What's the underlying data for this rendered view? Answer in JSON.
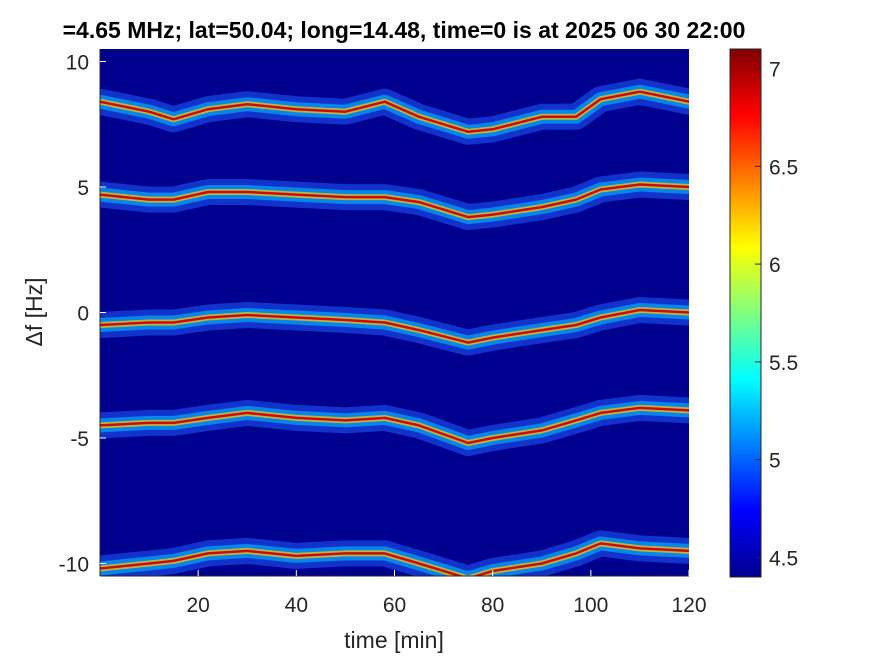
{
  "chart_data": {
    "type": "heatmap",
    "title": "=4.65 MHz;  lat=50.04; long=14.48, time=0 is at 2025 06 30 22:00",
    "xlabel": "time [min]",
    "ylabel": "Δf [Hz]",
    "xlim": [
      0,
      120
    ],
    "ylim": [
      -10.5,
      10.5
    ],
    "x_ticks": [
      "20",
      "40",
      "60",
      "80",
      "100",
      "120"
    ],
    "x_tick_values": [
      20,
      40,
      60,
      80,
      100,
      120
    ],
    "y_ticks": [
      "10",
      "5",
      "0",
      "-5",
      "-10"
    ],
    "y_tick_values": [
      10,
      5,
      0,
      -5,
      -10
    ],
    "colorbar": {
      "colormap": "jet",
      "range": [
        4.4,
        7.1
      ],
      "ticks": [
        "7",
        "6.5",
        "6",
        "5.5",
        "5",
        "4.5"
      ],
      "tick_values": [
        7,
        6.5,
        6,
        5.5,
        5,
        4.5
      ]
    },
    "background_color": "#00008f",
    "series": [
      {
        "base_offset": 10,
        "x": [
          0,
          10,
          15,
          22,
          30,
          40,
          50,
          58,
          65,
          75,
          80,
          90,
          97,
          102,
          110,
          120
        ],
        "y": [
          8.4,
          8.0,
          7.7,
          8.1,
          8.3,
          8.1,
          8.0,
          8.4,
          7.8,
          7.2,
          7.3,
          7.8,
          7.8,
          8.5,
          8.8,
          8.4
        ]
      },
      {
        "base_offset": 5,
        "x": [
          0,
          10,
          15,
          22,
          30,
          40,
          50,
          58,
          65,
          75,
          80,
          90,
          97,
          102,
          110,
          120
        ],
        "y": [
          4.7,
          4.5,
          4.5,
          4.8,
          4.8,
          4.7,
          4.6,
          4.6,
          4.4,
          3.8,
          3.9,
          4.2,
          4.5,
          4.9,
          5.1,
          5.0
        ]
      },
      {
        "base_offset": 0,
        "x": [
          0,
          10,
          15,
          22,
          30,
          40,
          50,
          58,
          65,
          75,
          80,
          90,
          97,
          102,
          110,
          120
        ],
        "y": [
          -0.5,
          -0.4,
          -0.4,
          -0.2,
          -0.1,
          -0.2,
          -0.3,
          -0.4,
          -0.7,
          -1.2,
          -1.0,
          -0.7,
          -0.5,
          -0.2,
          0.1,
          0.0
        ]
      },
      {
        "base_offset": -5,
        "x": [
          0,
          10,
          15,
          22,
          30,
          40,
          50,
          58,
          65,
          75,
          80,
          90,
          97,
          102,
          110,
          120
        ],
        "y": [
          -4.5,
          -4.4,
          -4.4,
          -4.2,
          -4.0,
          -4.2,
          -4.3,
          -4.2,
          -4.5,
          -5.2,
          -5.0,
          -4.7,
          -4.3,
          -4.0,
          -3.8,
          -3.9
        ]
      },
      {
        "base_offset": -10,
        "x": [
          0,
          10,
          15,
          22,
          30,
          40,
          50,
          58,
          65,
          75,
          80,
          90,
          97,
          102,
          110,
          120
        ],
        "y": [
          -10.2,
          -10.0,
          -9.9,
          -9.6,
          -9.5,
          -9.7,
          -9.6,
          -9.6,
          -10.0,
          -10.6,
          -10.3,
          -10.0,
          -9.6,
          -9.2,
          -9.4,
          -9.5
        ]
      }
    ],
    "grid": false,
    "legend": "none"
  }
}
